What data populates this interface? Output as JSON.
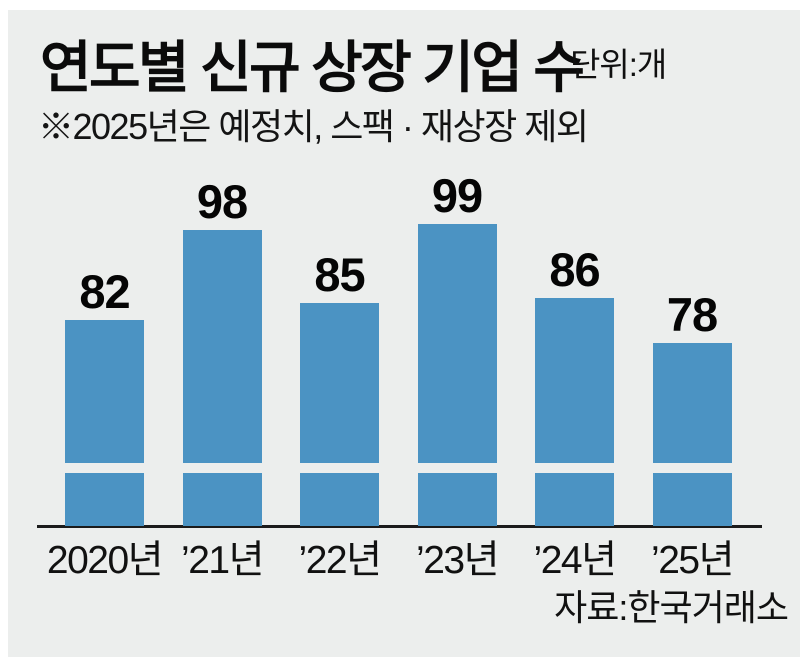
{
  "header": {
    "title": "연도별 신규 상장 기업 수",
    "unit": "단위:개",
    "note": "※2025년은 예정치, 스팩 · 재상장 제외"
  },
  "chart_data": {
    "type": "bar",
    "title": "연도별 신규 상장 기업 수",
    "unit_label": "단위:개",
    "note": "※2025년은 예정치, 스팩 · 재상장 제외",
    "categories": [
      "2020년",
      "’21년",
      "’22년",
      "’23년",
      "’24년",
      "’25년"
    ],
    "values": [
      82,
      98,
      85,
      99,
      86,
      78
    ],
    "bar_color": "#4b93c3",
    "background_color": "#eceeed",
    "axis_color": "#1b1b1b",
    "ylim": [
      45,
      110
    ],
    "grid": false,
    "legend": "none",
    "value_labels_shown": true,
    "baseline_break_gap": true
  },
  "footer": {
    "source": "자료:한국거래소"
  }
}
